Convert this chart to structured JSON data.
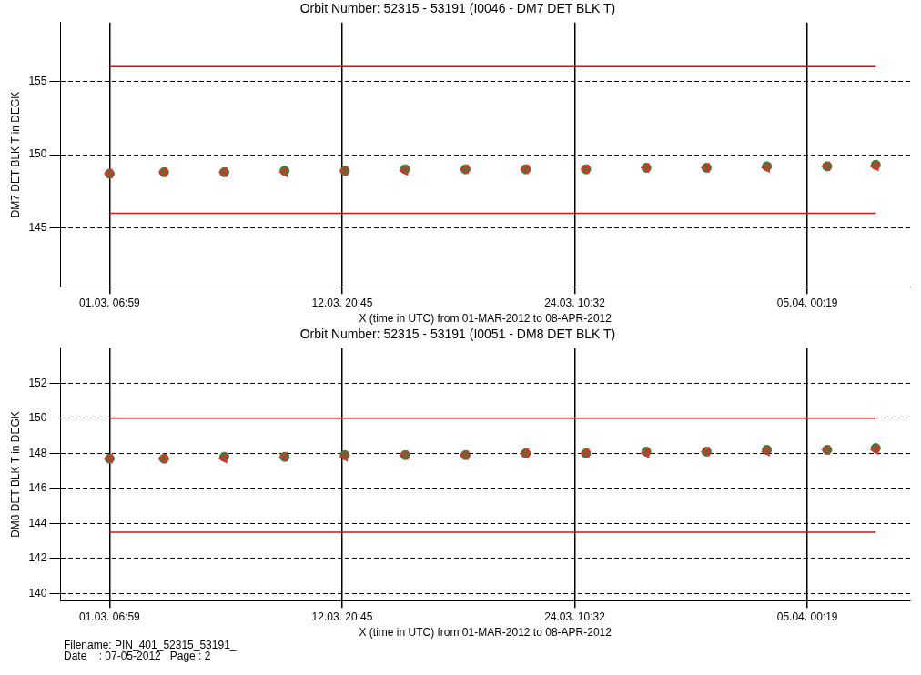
{
  "chart_data": [
    {
      "type": "scatter",
      "title": "Orbit Number: 52315 - 53191 (I0046 - DM7 DET BLK T)",
      "xlabel": "X (time in UTC) from 01-MAR-2012 to 08-APR-2012",
      "ylabel": "DM7 DET BLK T in DEGK",
      "x": [
        "2012-03-01T07:00",
        "2012-03-04T00:00",
        "2012-03-07T00:00",
        "2012-03-10T00:00",
        "2012-03-13T00:00",
        "2012-03-16T00:00",
        "2012-03-19T00:00",
        "2012-03-22T00:00",
        "2012-03-25T00:00",
        "2012-03-28T00:00",
        "2012-03-31T00:00",
        "2012-04-03T00:00",
        "2012-04-06T00:00",
        "2012-04-08T10:00"
      ],
      "series": [
        {
          "color": "#3c7d3c",
          "marker": "circle",
          "values": [
            148.7,
            148.8,
            148.8,
            148.9,
            148.9,
            149.0,
            149.0,
            149.0,
            149.0,
            149.1,
            149.1,
            149.2,
            149.2,
            149.3
          ]
        },
        {
          "color": "#ff2020",
          "marker": "triangle",
          "values": [
            148.7,
            148.8,
            148.8,
            148.8,
            148.9,
            148.9,
            149.0,
            149.0,
            149.0,
            149.1,
            149.1,
            149.1,
            149.2,
            149.2
          ]
        }
      ],
      "xlim": [
        "2012-02-27T20:20",
        "2012-04-10T03:00"
      ],
      "xticks": [
        {
          "value": "2012-03-01T06:59",
          "label": "01.03. 06:59"
        },
        {
          "value": "2012-03-12T20:45",
          "label": "12.03. 20:45"
        },
        {
          "value": "2012-03-24T10:32",
          "label": "24.03. 10:32"
        },
        {
          "value": "2012-04-05T00:19",
          "label": "05.04. 00:19"
        }
      ],
      "ylim": [
        141,
        159
      ],
      "yticks": [
        145,
        150,
        155
      ],
      "grid": true,
      "ref_lines": [
        {
          "axis": "y",
          "value": 156,
          "color": "#ff0000"
        },
        {
          "axis": "y",
          "value": 146,
          "color": "#ff0000"
        }
      ]
    },
    {
      "type": "scatter",
      "title": "Orbit Number: 52315 - 53191 (I0051 - DM8 DET BLK T)",
      "xlabel": "X (time in UTC) from 01-MAR-2012 to 08-APR-2012",
      "ylabel": "DM8 DET BLK T in DEGK",
      "x": [
        "2012-03-01T07:00",
        "2012-03-04T00:00",
        "2012-03-07T00:00",
        "2012-03-10T00:00",
        "2012-03-13T00:00",
        "2012-03-16T00:00",
        "2012-03-19T00:00",
        "2012-03-22T00:00",
        "2012-03-25T00:00",
        "2012-03-28T00:00",
        "2012-03-31T00:00",
        "2012-04-03T00:00",
        "2012-04-06T00:00",
        "2012-04-08T10:00"
      ],
      "series": [
        {
          "color": "#3c7d3c",
          "marker": "circle",
          "values": [
            147.7,
            147.7,
            147.8,
            147.8,
            147.9,
            147.9,
            147.9,
            148.0,
            148.0,
            148.1,
            148.1,
            148.2,
            148.2,
            148.3
          ]
        },
        {
          "color": "#ff2020",
          "marker": "triangle",
          "values": [
            147.7,
            147.7,
            147.7,
            147.8,
            147.8,
            147.9,
            147.9,
            148.0,
            148.0,
            148.0,
            148.1,
            148.1,
            148.2,
            148.2
          ]
        }
      ],
      "xlim": [
        "2012-02-27T20:20",
        "2012-04-10T03:00"
      ],
      "xticks": [
        {
          "value": "2012-03-01T06:59",
          "label": "01.03. 06:59"
        },
        {
          "value": "2012-03-12T20:45",
          "label": "12.03. 20:45"
        },
        {
          "value": "2012-03-24T10:32",
          "label": "24.03. 10:32"
        },
        {
          "value": "2012-04-05T00:19",
          "label": "05.04. 00:19"
        }
      ],
      "ylim": [
        139.6,
        154
      ],
      "yticks": [
        140,
        142,
        144,
        146,
        148,
        150,
        152
      ],
      "grid": true,
      "ref_lines": [
        {
          "axis": "y",
          "value": 150,
          "color": "#ff0000"
        },
        {
          "axis": "y",
          "value": 143.5,
          "color": "#ff0000"
        }
      ],
      "annotations": [
        "Filename: PIN_401_52315_53191_",
        "Date    : 07-05-2012   Page : 2"
      ]
    }
  ]
}
